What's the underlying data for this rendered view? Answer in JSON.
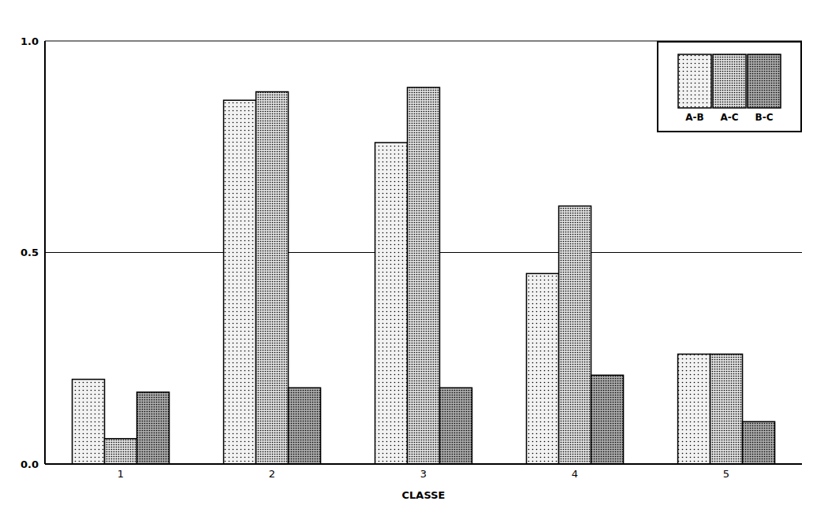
{
  "chart_data": {
    "type": "bar",
    "x_label": "CLASSE",
    "categories": [
      "1",
      "2",
      "3",
      "4",
      "5"
    ],
    "series": [
      {
        "name": "A-B",
        "color": "#f2f2f2",
        "values": [
          0.2,
          0.86,
          0.76,
          0.45,
          0.26
        ]
      },
      {
        "name": "A-C",
        "color": "#dddddd",
        "values": [
          0.06,
          0.88,
          0.89,
          0.61,
          0.26
        ]
      },
      {
        "name": "B-C",
        "color": "#a8a8a8",
        "values": [
          0.17,
          0.18,
          0.18,
          0.21,
          0.1
        ]
      }
    ],
    "ylim": [
      0,
      1
    ],
    "yticks": [
      {
        "value": 0,
        "label": "0.0"
      },
      {
        "value": 0.5,
        "label": "0.5"
      },
      {
        "value": 1,
        "label": "1.0"
      }
    ],
    "grid": true,
    "legend": "top-right"
  }
}
